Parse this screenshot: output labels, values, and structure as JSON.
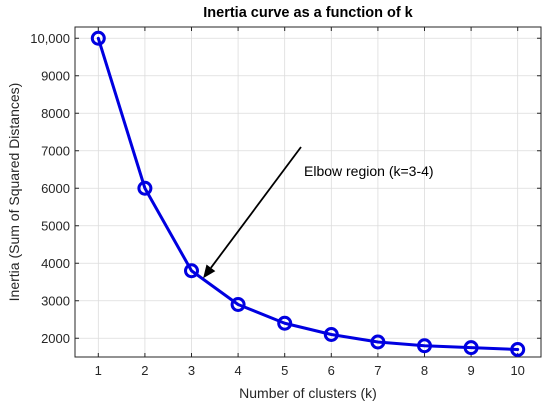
{
  "chart_data": {
    "type": "line",
    "title": "Inertia curve as a function of k",
    "xlabel": "Number of clusters (k)",
    "ylabel": "Inertia (Sum of Squared Distances)",
    "x": [
      1,
      2,
      3,
      4,
      5,
      6,
      7,
      8,
      9,
      10
    ],
    "series": [
      {
        "values": [
          10000,
          6000,
          3800,
          2900,
          2400,
          2100,
          1900,
          1800,
          1750,
          1700
        ]
      }
    ],
    "xlim": [
      0.5,
      10.5
    ],
    "ylim": [
      1500,
      10300
    ],
    "xticks": [
      1,
      2,
      3,
      4,
      5,
      6,
      7,
      8,
      9,
      10
    ],
    "yticks": [
      2000,
      3000,
      4000,
      5000,
      6000,
      7000,
      8000,
      9000,
      10000
    ],
    "ytick_labels": [
      "2000",
      "3000",
      "4000",
      "5000",
      "6000",
      "7000",
      "8000",
      "9000",
      "10,000"
    ],
    "grid": true,
    "line_color": "#0000e0",
    "annotation": {
      "text": "Elbow region (k=3-4)",
      "arrow_tip": [
        3.25,
        3600
      ],
      "arrow_tail": [
        5.35,
        7100
      ]
    }
  }
}
